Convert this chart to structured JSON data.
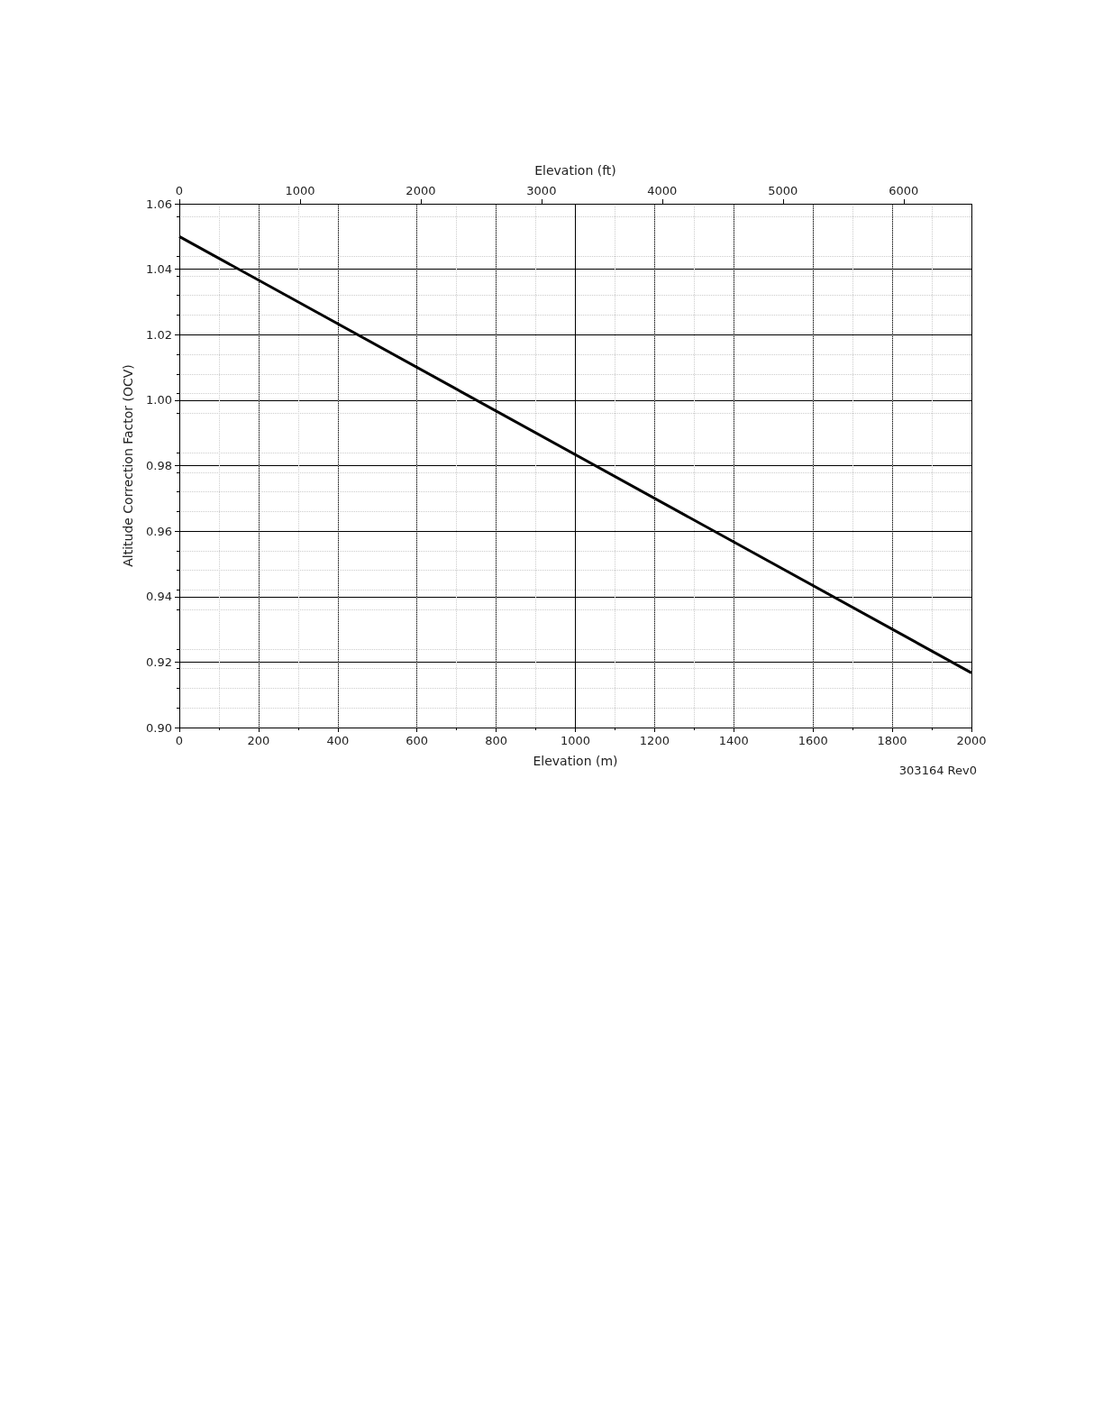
{
  "chart_data": {
    "type": "line",
    "xlabel": "Elevation (m)",
    "x2label": "Elevation (ft)",
    "ylabel": "Altitude Correction Factor (OCV)",
    "x": [
      0,
      2000
    ],
    "series": [
      {
        "color": "#000000",
        "values": [
          1.05,
          0.9167
        ]
      }
    ],
    "xlim": [
      0,
      2000
    ],
    "xticks": [
      0,
      200,
      400,
      600,
      800,
      1000,
      1200,
      1400,
      1600,
      1800,
      2000
    ],
    "x2lim": [
      0,
      6561.68
    ],
    "x2ticks": [
      0,
      1000,
      2000,
      3000,
      4000,
      5000,
      6000
    ],
    "ylim": [
      0.9,
      1.06
    ],
    "yticks": [
      {
        "value": 0.9,
        "label": "0.90"
      },
      0.92,
      0.94,
      0.96,
      0.98,
      {
        "value": 1.0,
        "label": "1.00"
      },
      1.02,
      1.04,
      1.06
    ],
    "grid": true,
    "marker": "none",
    "line_style": "solid",
    "annotations": [
      "303164 Rev0"
    ]
  }
}
